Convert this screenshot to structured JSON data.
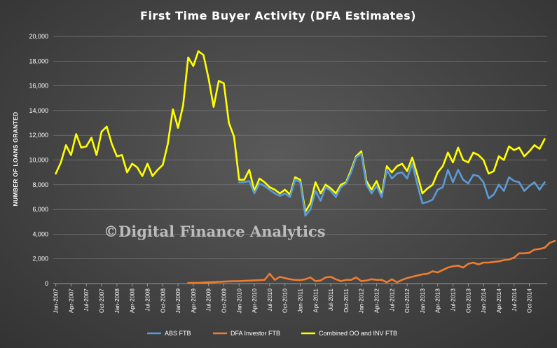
{
  "watermark": "©Digital Finance Analytics",
  "chart_data": {
    "type": "line",
    "title": "First Time Buyer Activity (DFA Estimates)",
    "ylabel": "NUMBER OF LOANS GRANTED",
    "xlabel": "",
    "ylim": [
      0,
      20000
    ],
    "yticks": [
      0,
      2000,
      4000,
      6000,
      8000,
      10000,
      12000,
      14000,
      16000,
      18000,
      20000
    ],
    "ytick_labels": [
      "0",
      "2,000",
      "4,000",
      "6,000",
      "8,000",
      "10,000",
      "12,000",
      "14,000",
      "16,000",
      "18,000",
      "20,000"
    ],
    "grid": true,
    "legend": "bottom",
    "x_tick_labels": [
      "Jan-2007",
      "Apr-2007",
      "Jul-2007",
      "Oct-2007",
      "Jan-2008",
      "Apr-2008",
      "Jul-2008",
      "Oct-2008",
      "Jan-2009",
      "Apr-2009",
      "Jul-2009",
      "Oct-2009",
      "Jan-2010",
      "Apr-2010",
      "Jul-2010",
      "Oct-2010",
      "Jan-2011",
      "Apr-2011",
      "Jul-2011",
      "Oct-2011",
      "Jan-2012",
      "Apr-2012",
      "Jul-2012",
      "Oct-2012",
      "Jan-2013",
      "Apr-2013",
      "Jul-2013",
      "Oct-2013",
      "Jan-2014",
      "Apr-2014",
      "Jul-2014",
      "Oct-2014"
    ],
    "series": [
      {
        "name": "ABS FTB",
        "color": "#5b9bd5",
        "start_index": 36,
        "values": [
          8200,
          8200,
          8300,
          7300,
          8100,
          7900,
          7600,
          7300,
          7100,
          7300,
          7000,
          8400,
          8200,
          5500,
          6000,
          7500,
          6700,
          7800,
          7500,
          7000,
          7800,
          8100,
          9000,
          10200,
          10500,
          8000,
          7300,
          7900,
          7000,
          9200,
          8500,
          8900,
          9000,
          8500,
          9700,
          8000,
          6500,
          6600,
          6800,
          7600,
          7800,
          9200,
          8200,
          9200,
          8400,
          8100,
          8800,
          8700,
          8200,
          6900,
          7200,
          8000,
          7500,
          8600,
          8300,
          8200,
          7500,
          7900,
          8200,
          7600,
          8200
        ]
      },
      {
        "name": "DFA Investor FTB",
        "color": "#ed7d31",
        "start_index": 26,
        "values": [
          50,
          50,
          50,
          80,
          100,
          120,
          140,
          160,
          180,
          200,
          200,
          220,
          240,
          260,
          280,
          300,
          800,
          300,
          550,
          450,
          350,
          300,
          280,
          350,
          500,
          200,
          250,
          500,
          550,
          350,
          200,
          300,
          300,
          500,
          200,
          250,
          350,
          300,
          300,
          100,
          350,
          100,
          300,
          450,
          550,
          650,
          750,
          800,
          1000,
          900,
          1100,
          1300,
          1400,
          1450,
          1300,
          1600,
          1700,
          1550,
          1700,
          1700,
          1750,
          1800,
          1900,
          1950,
          2100,
          2450,
          2450,
          2500,
          2750,
          2800,
          2900,
          3300,
          3450
        ]
      },
      {
        "name": "Combined OO and INV FTB",
        "color": "#ffff00",
        "start_index": 0,
        "values": [
          8900,
          9800,
          11200,
          10400,
          12100,
          11000,
          11100,
          11800,
          10400,
          12300,
          12700,
          11300,
          10300,
          10400,
          9000,
          9700,
          9400,
          8700,
          9700,
          8700,
          9200,
          9600,
          11300,
          14100,
          12600,
          14400,
          18300,
          17600,
          18800,
          18500,
          16600,
          14300,
          16400,
          16200,
          13000,
          11900,
          8400,
          8400,
          9200,
          7500,
          8500,
          8200,
          7800,
          7600,
          7300,
          7600,
          7200,
          8600,
          8400,
          5800,
          6500,
          8200,
          7300,
          8000,
          7700,
          7300,
          8000,
          8200,
          9200,
          10300,
          10700,
          8300,
          7600,
          8300,
          7200,
          9500,
          9000,
          9500,
          9700,
          9100,
          10200,
          8800,
          7300,
          7700,
          8000,
          9000,
          9500,
          10600,
          9800,
          11000,
          10000,
          9800,
          10600,
          10400,
          10000,
          8900,
          9100,
          10300,
          10000,
          11100,
          10800,
          11000,
          10300,
          10700,
          11200,
          10900,
          11700
        ]
      }
    ]
  }
}
